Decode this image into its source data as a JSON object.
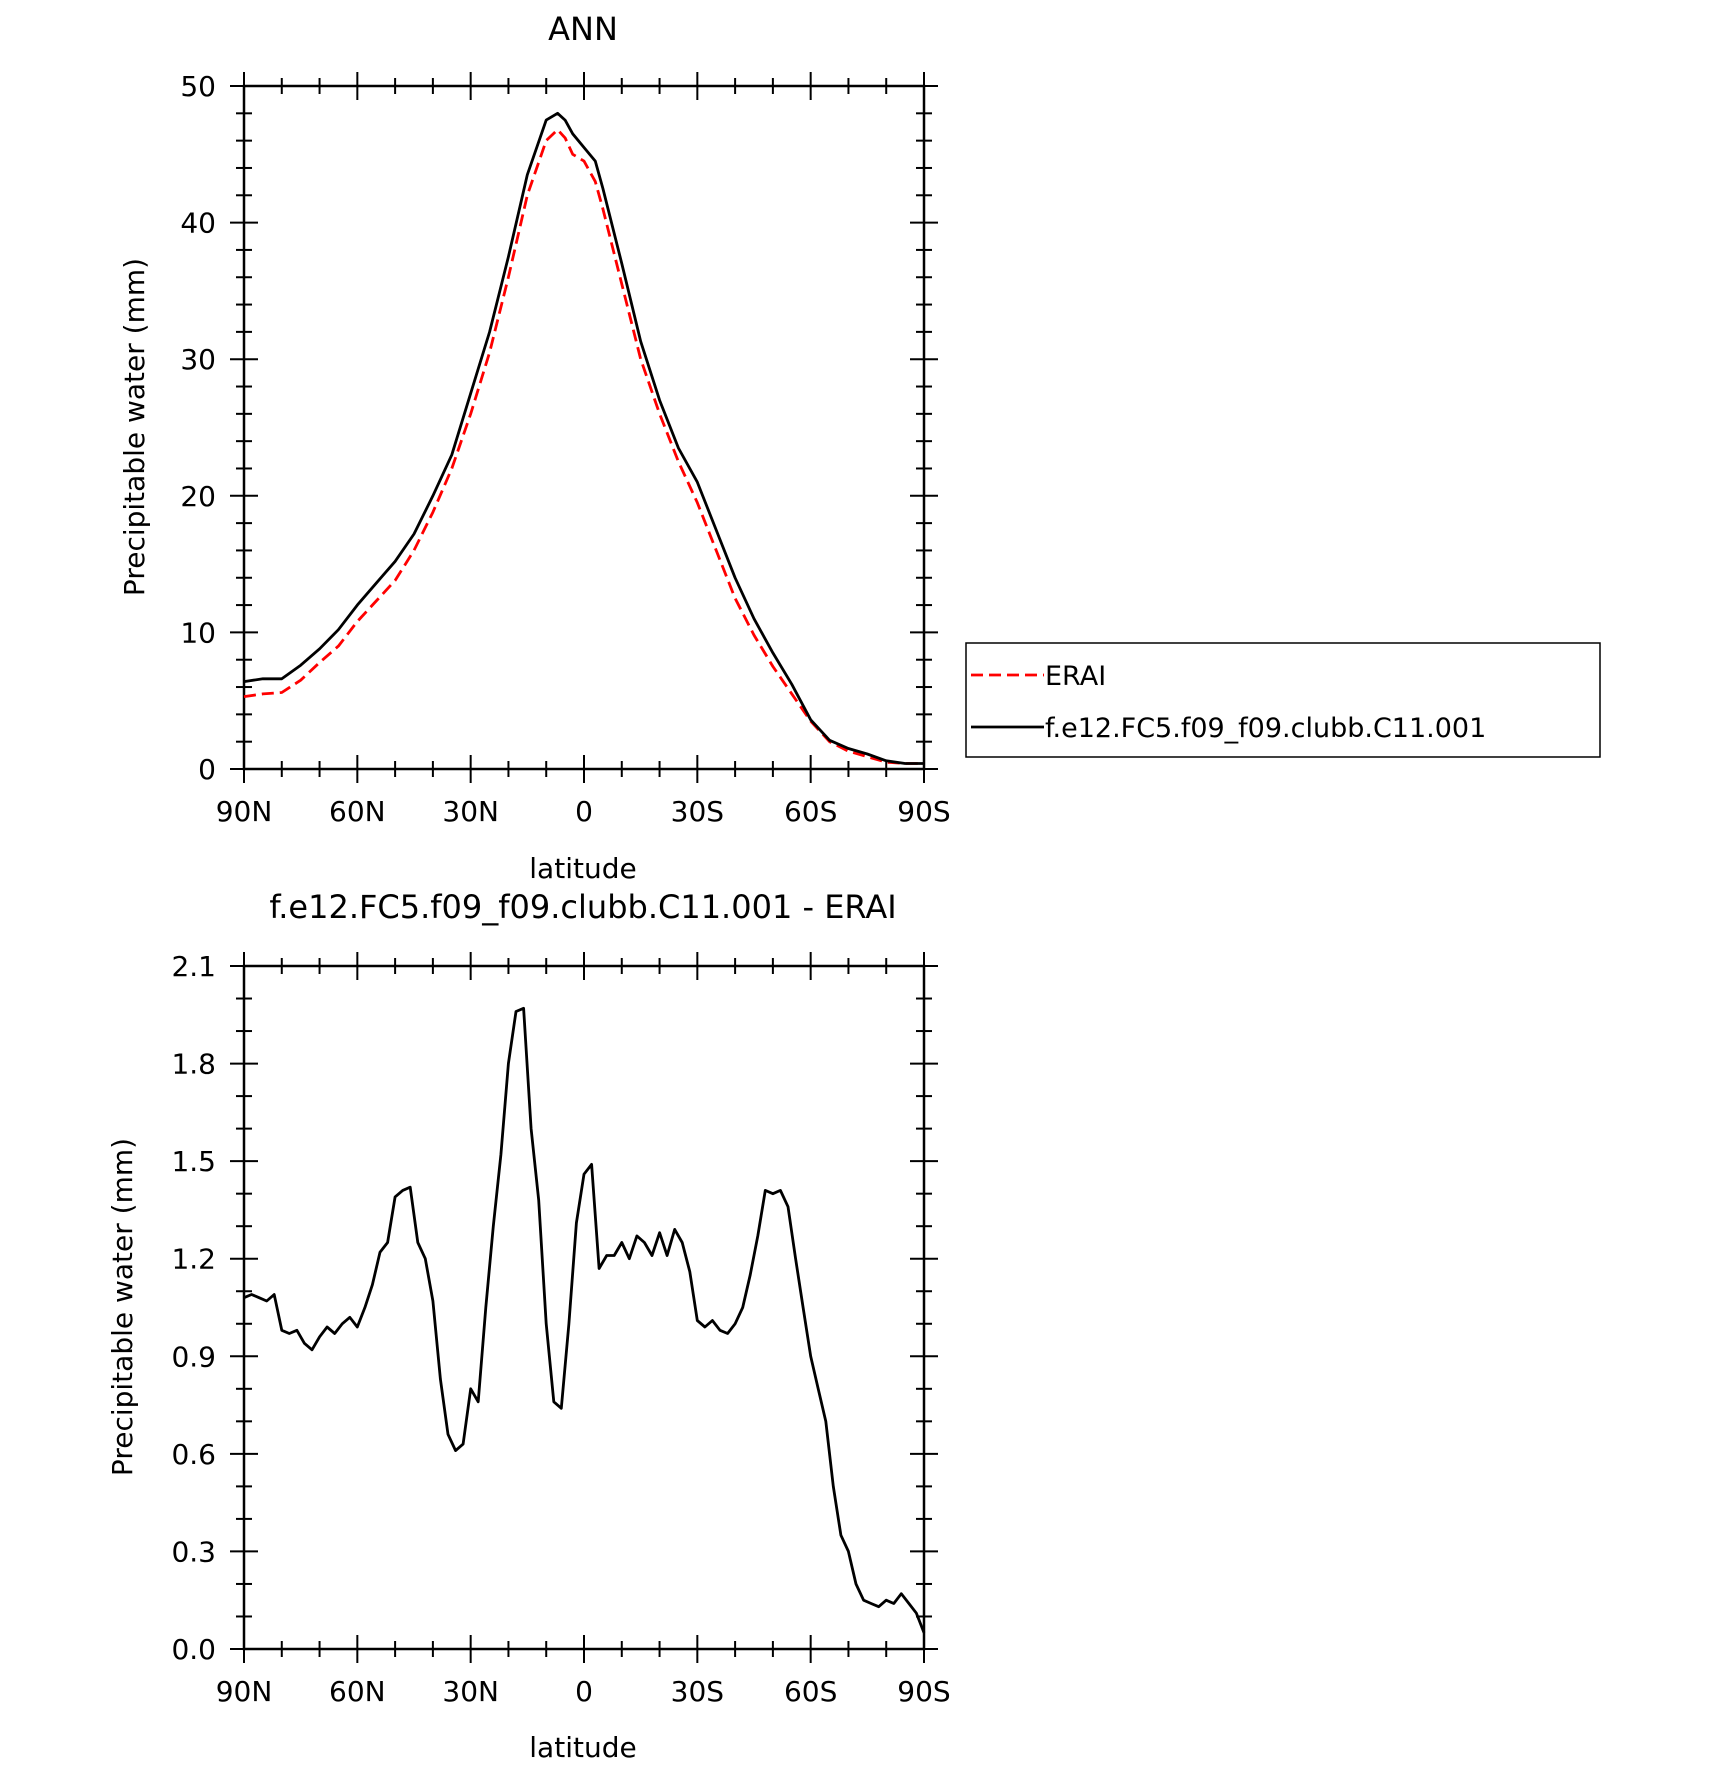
{
  "chart_data": [
    {
      "type": "line",
      "title": "ANN",
      "xlabel": "latitude",
      "ylabel": "Precipitable water (mm)",
      "xlim": [
        90,
        -90
      ],
      "ylim": [
        0,
        50
      ],
      "xticks": [
        90,
        60,
        30,
        0,
        -30,
        -60,
        -90
      ],
      "xtick_labels": [
        "90N",
        "60N",
        "30N",
        "0",
        "30S",
        "60S",
        "90S"
      ],
      "yticks": [
        0,
        10,
        20,
        30,
        40,
        50
      ],
      "ytick_labels": [
        "0",
        "10",
        "20",
        "30",
        "40",
        "50"
      ],
      "legend_position": "right",
      "series": [
        {
          "name": "ERAI",
          "color": "#ff0000",
          "dash": "dashed",
          "x": [
            90,
            85,
            80,
            75,
            70,
            65,
            60,
            55,
            50,
            45,
            40,
            35,
            30,
            25,
            20,
            15,
            10,
            7,
            5,
            3,
            0,
            -3,
            -5,
            -10,
            -15,
            -20,
            -25,
            -30,
            -35,
            -40,
            -45,
            -50,
            -55,
            -60,
            -65,
            -70,
            -75,
            -80,
            -85,
            -90
          ],
          "y": [
            5.3,
            5.5,
            5.6,
            6.5,
            7.8,
            9.0,
            10.8,
            12.3,
            13.8,
            16.0,
            18.8,
            22.0,
            26.0,
            30.5,
            36.0,
            42.0,
            46.0,
            46.8,
            46.2,
            45.0,
            44.5,
            43.0,
            41.0,
            35.5,
            30.0,
            26.0,
            22.5,
            19.5,
            16.0,
            12.5,
            9.8,
            7.5,
            5.5,
            3.5,
            2.0,
            1.3,
            0.9,
            0.5,
            0.4,
            0.4
          ]
        },
        {
          "name": "f.e12.FC5.f09_f09.clubb.C11.001",
          "color": "#000000",
          "dash": "solid",
          "x": [
            90,
            85,
            80,
            75,
            70,
            65,
            60,
            55,
            50,
            45,
            40,
            35,
            30,
            25,
            20,
            15,
            10,
            7,
            5,
            3,
            0,
            -3,
            -5,
            -10,
            -15,
            -20,
            -25,
            -30,
            -35,
            -40,
            -45,
            -50,
            -55,
            -60,
            -65,
            -70,
            -75,
            -80,
            -85,
            -90
          ],
          "y": [
            6.4,
            6.6,
            6.6,
            7.6,
            8.8,
            10.2,
            12.0,
            13.6,
            15.2,
            17.2,
            20.0,
            23.0,
            27.5,
            32.0,
            37.5,
            43.5,
            47.5,
            48.0,
            47.5,
            46.5,
            45.5,
            44.5,
            42.5,
            37.0,
            31.3,
            27.0,
            23.5,
            21.0,
            17.5,
            14.0,
            11.0,
            8.5,
            6.2,
            3.6,
            2.1,
            1.5,
            1.1,
            0.6,
            0.4,
            0.4
          ]
        }
      ]
    },
    {
      "type": "line",
      "title": "f.e12.FC5.f09_f09.clubb.C11.001 - ERAI",
      "xlabel": "latitude",
      "ylabel": "Precipitable water (mm)",
      "xlim": [
        90,
        -90
      ],
      "ylim": [
        0.0,
        2.1
      ],
      "xticks": [
        90,
        60,
        30,
        0,
        -30,
        -60,
        -90
      ],
      "xtick_labels": [
        "90N",
        "60N",
        "30N",
        "0",
        "30S",
        "60S",
        "90S"
      ],
      "yticks": [
        0.0,
        0.3,
        0.6,
        0.9,
        1.2,
        1.5,
        1.8,
        2.1
      ],
      "ytick_labels": [
        "0.0",
        "0.3",
        "0.6",
        "0.9",
        "1.2",
        "1.5",
        "1.8",
        "2.1"
      ],
      "series": [
        {
          "color": "#000000",
          "dash": "solid",
          "x": [
            90,
            88,
            86,
            84,
            82,
            80,
            78,
            76,
            74,
            72,
            70,
            68,
            66,
            64,
            62,
            60,
            58,
            56,
            54,
            52,
            50,
            48,
            46,
            44,
            42,
            40,
            38,
            36,
            34,
            32,
            30,
            28,
            26,
            24,
            22,
            20,
            18,
            16,
            14,
            12,
            10,
            8,
            6,
            4,
            2,
            0,
            -2,
            -4,
            -6,
            -8,
            -10,
            -12,
            -14,
            -16,
            -18,
            -20,
            -22,
            -24,
            -26,
            -28,
            -30,
            -32,
            -34,
            -36,
            -38,
            -40,
            -42,
            -44,
            -46,
            -48,
            -50,
            -52,
            -54,
            -56,
            -58,
            -60,
            -62,
            -64,
            -66,
            -68,
            -70,
            -72,
            -74,
            -76,
            -78,
            -80,
            -82,
            -84,
            -86,
            -88,
            -90
          ],
          "y": [
            1.08,
            1.09,
            1.08,
            1.07,
            1.09,
            0.98,
            0.97,
            0.98,
            0.94,
            0.92,
            0.96,
            0.99,
            0.97,
            1.0,
            1.02,
            0.99,
            1.05,
            1.12,
            1.22,
            1.25,
            1.39,
            1.41,
            1.42,
            1.25,
            1.2,
            1.07,
            0.83,
            0.66,
            0.61,
            0.63,
            0.8,
            0.76,
            1.05,
            1.3,
            1.52,
            1.8,
            1.96,
            1.97,
            1.6,
            1.38,
            1.0,
            0.76,
            0.74,
            1.0,
            1.31,
            1.46,
            1.49,
            1.17,
            1.21,
            1.21,
            1.25,
            1.2,
            1.27,
            1.25,
            1.21,
            1.28,
            1.21,
            1.29,
            1.25,
            1.16,
            1.01,
            0.99,
            1.01,
            0.98,
            0.97,
            1.0,
            1.05,
            1.15,
            1.27,
            1.41,
            1.4,
            1.41,
            1.36,
            1.2,
            1.05,
            0.9,
            0.8,
            0.7,
            0.5,
            0.35,
            0.3,
            0.2,
            0.15,
            0.14,
            0.13,
            0.15,
            0.14,
            0.17,
            0.14,
            0.11,
            0.05
          ]
        }
      ]
    }
  ]
}
